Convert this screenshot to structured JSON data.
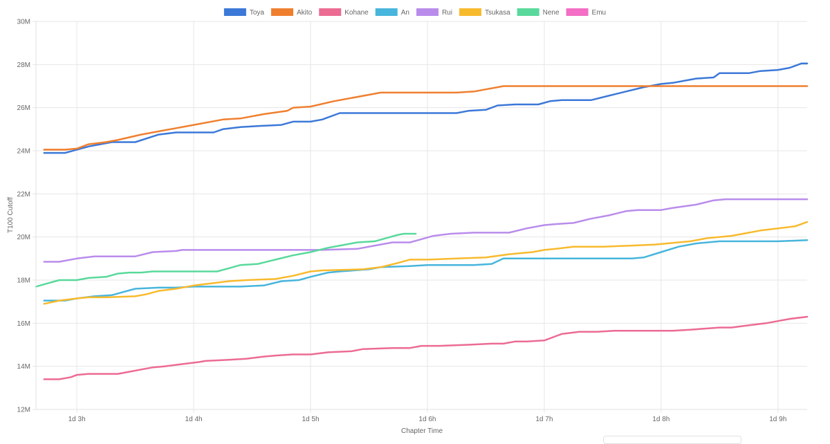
{
  "chart_data": {
    "type": "line",
    "title": "",
    "xlabel": "Chapter Time",
    "ylabel": "T100 Cutoff",
    "ylim": [
      12,
      30
    ],
    "xlim": [
      2.65,
      9.25
    ],
    "y_ticks": [
      "12M",
      "14M",
      "16M",
      "18M",
      "20M",
      "22M",
      "24M",
      "26M",
      "28M",
      "30M"
    ],
    "x_ticks": [
      "1d 3h",
      "1d 4h",
      "1d 5h",
      "1d 6h",
      "1d 7h",
      "1d 8h",
      "1d 9h"
    ],
    "grid": true,
    "legend_position": "top",
    "series": [
      {
        "name": "Toya",
        "color": "#3b78d8",
        "x": [
          2.72,
          2.9,
          3.0,
          3.1,
          3.2,
          3.3,
          3.5,
          3.7,
          3.85,
          4.0,
          4.17,
          4.25,
          4.4,
          4.55,
          4.75,
          4.85,
          5.0,
          5.1,
          5.25,
          5.5,
          5.8,
          6.0,
          6.25,
          6.35,
          6.5,
          6.6,
          6.75,
          6.95,
          7.05,
          7.15,
          7.4,
          7.55,
          7.7,
          7.85,
          8.0,
          8.1,
          8.3,
          8.45,
          8.5,
          8.75,
          8.85,
          9.0,
          9.1,
          9.2,
          9.25
        ],
        "values": [
          23.9,
          23.9,
          24.05,
          24.2,
          24.3,
          24.4,
          24.4,
          24.75,
          24.85,
          24.85,
          24.85,
          25.0,
          25.1,
          25.15,
          25.2,
          25.35,
          25.35,
          25.45,
          25.75,
          25.75,
          25.75,
          25.75,
          25.75,
          25.85,
          25.9,
          26.1,
          26.15,
          26.15,
          26.3,
          26.35,
          26.35,
          26.55,
          26.75,
          26.95,
          27.1,
          27.15,
          27.35,
          27.4,
          27.6,
          27.6,
          27.7,
          27.75,
          27.85,
          28.05,
          28.05
        ]
      },
      {
        "name": "Akito",
        "color": "#ef7f2f",
        "x": [
          2.72,
          2.9,
          3.0,
          3.1,
          3.25,
          3.35,
          3.55,
          3.75,
          3.85,
          4.0,
          4.25,
          4.4,
          4.6,
          4.8,
          4.85,
          5.0,
          5.2,
          5.4,
          5.6,
          6.0,
          6.25,
          6.4,
          6.5,
          6.6,
          6.65,
          6.8,
          7.0,
          7.5,
          8.0,
          8.5,
          9.0,
          9.25
        ],
        "values": [
          24.05,
          24.05,
          24.1,
          24.3,
          24.4,
          24.5,
          24.75,
          24.95,
          25.05,
          25.2,
          25.45,
          25.5,
          25.7,
          25.85,
          26.0,
          26.05,
          26.3,
          26.5,
          26.7,
          26.7,
          26.7,
          26.75,
          26.85,
          26.95,
          27.0,
          27.0,
          27.0,
          27.0,
          27.0,
          27.0,
          27.0,
          27.0
        ]
      },
      {
        "name": "Kohane",
        "color": "#ec6b93",
        "x": [
          2.72,
          2.85,
          2.95,
          3.0,
          3.1,
          3.35,
          3.45,
          3.55,
          3.65,
          3.75,
          3.9,
          4.05,
          4.1,
          4.3,
          4.45,
          4.6,
          4.7,
          4.85,
          5.0,
          5.15,
          5.35,
          5.45,
          5.7,
          5.85,
          5.95,
          6.1,
          6.35,
          6.55,
          6.65,
          6.75,
          6.85,
          7.0,
          7.1,
          7.15,
          7.3,
          7.45,
          7.6,
          7.8,
          8.0,
          8.1,
          8.25,
          8.5,
          8.6,
          8.75,
          8.9,
          9.0,
          9.1,
          9.25
        ],
        "values": [
          13.4,
          13.4,
          13.5,
          13.6,
          13.65,
          13.65,
          13.75,
          13.85,
          13.95,
          14.0,
          14.1,
          14.2,
          14.25,
          14.3,
          14.35,
          14.45,
          14.5,
          14.55,
          14.55,
          14.65,
          14.7,
          14.8,
          14.85,
          14.85,
          14.95,
          14.95,
          15.0,
          15.05,
          15.05,
          15.15,
          15.15,
          15.2,
          15.4,
          15.5,
          15.6,
          15.6,
          15.65,
          15.65,
          15.65,
          15.65,
          15.7,
          15.8,
          15.8,
          15.9,
          16.0,
          16.1,
          16.2,
          16.3
        ]
      },
      {
        "name": "An",
        "color": "#47b5dc",
        "x": [
          2.72,
          2.9,
          3.0,
          3.15,
          3.3,
          3.4,
          3.5,
          3.7,
          3.85,
          4.0,
          4.15,
          4.4,
          4.6,
          4.75,
          4.9,
          5.0,
          5.15,
          5.25,
          5.5,
          5.6,
          5.85,
          6.0,
          6.2,
          6.4,
          6.55,
          6.65,
          6.8,
          7.0,
          7.2,
          7.5,
          7.75,
          7.85,
          8.0,
          8.15,
          8.3,
          8.5,
          8.75,
          9.0,
          9.25
        ],
        "values": [
          17.05,
          17.05,
          17.15,
          17.25,
          17.3,
          17.45,
          17.6,
          17.65,
          17.65,
          17.7,
          17.7,
          17.7,
          17.75,
          17.95,
          18.0,
          18.15,
          18.35,
          18.4,
          18.5,
          18.6,
          18.65,
          18.7,
          18.7,
          18.7,
          18.75,
          19.0,
          19.0,
          19.0,
          19.0,
          19.0,
          19.0,
          19.05,
          19.3,
          19.55,
          19.7,
          19.8,
          19.8,
          19.8,
          19.85
        ]
      },
      {
        "name": "Rui",
        "color": "#b98ceb",
        "x": [
          2.72,
          2.85,
          3.0,
          3.15,
          3.5,
          3.65,
          3.85,
          3.9,
          4.2,
          4.5,
          4.8,
          5.1,
          5.4,
          5.55,
          5.7,
          5.85,
          5.95,
          6.05,
          6.2,
          6.4,
          6.6,
          6.7,
          6.85,
          7.0,
          7.1,
          7.25,
          7.4,
          7.55,
          7.7,
          7.8,
          8.0,
          8.1,
          8.3,
          8.45,
          8.55,
          8.8,
          9.0,
          9.25
        ],
        "values": [
          18.85,
          18.85,
          19.0,
          19.1,
          19.1,
          19.3,
          19.35,
          19.4,
          19.4,
          19.4,
          19.4,
          19.4,
          19.45,
          19.6,
          19.75,
          19.75,
          19.9,
          20.05,
          20.15,
          20.2,
          20.2,
          20.2,
          20.4,
          20.55,
          20.6,
          20.65,
          20.85,
          21.0,
          21.2,
          21.25,
          21.25,
          21.35,
          21.5,
          21.7,
          21.75,
          21.75,
          21.75,
          21.75
        ]
      },
      {
        "name": "Tsukasa",
        "color": "#f8ba2d",
        "x": [
          2.72,
          2.85,
          3.0,
          3.1,
          3.25,
          3.5,
          3.6,
          3.7,
          3.85,
          4.0,
          4.15,
          4.3,
          4.45,
          4.7,
          4.85,
          5.0,
          5.1,
          5.45,
          5.6,
          5.75,
          5.85,
          6.0,
          6.25,
          6.5,
          6.7,
          6.9,
          7.0,
          7.1,
          7.25,
          7.5,
          7.75,
          7.95,
          8.05,
          8.25,
          8.4,
          8.6,
          8.7,
          8.85,
          9.0,
          9.15,
          9.25
        ],
        "values": [
          16.9,
          17.05,
          17.15,
          17.2,
          17.2,
          17.25,
          17.35,
          17.5,
          17.6,
          17.75,
          17.85,
          17.95,
          18.0,
          18.05,
          18.2,
          18.4,
          18.45,
          18.5,
          18.6,
          18.8,
          18.95,
          18.95,
          19.0,
          19.05,
          19.2,
          19.3,
          19.4,
          19.45,
          19.55,
          19.55,
          19.6,
          19.65,
          19.7,
          19.8,
          19.95,
          20.05,
          20.15,
          20.3,
          20.4,
          20.5,
          20.7
        ]
      },
      {
        "name": "Nene",
        "color": "#58d99b",
        "x": [
          2.65,
          2.75,
          2.85,
          3.0,
          3.1,
          3.25,
          3.35,
          3.45,
          3.55,
          3.65,
          3.8,
          4.0,
          4.2,
          4.3,
          4.4,
          4.55,
          4.7,
          4.85,
          5.0,
          5.15,
          5.3,
          5.4,
          5.55,
          5.65,
          5.75,
          5.8,
          5.9
        ],
        "values": [
          17.7,
          17.85,
          18.0,
          18.0,
          18.1,
          18.15,
          18.3,
          18.35,
          18.35,
          18.4,
          18.4,
          18.4,
          18.4,
          18.55,
          18.7,
          18.75,
          18.95,
          19.15,
          19.3,
          19.5,
          19.65,
          19.75,
          19.8,
          19.95,
          20.1,
          20.15,
          20.15
        ]
      },
      {
        "name": "Emu",
        "color": "#f36ec4",
        "x": [],
        "values": []
      }
    ]
  }
}
